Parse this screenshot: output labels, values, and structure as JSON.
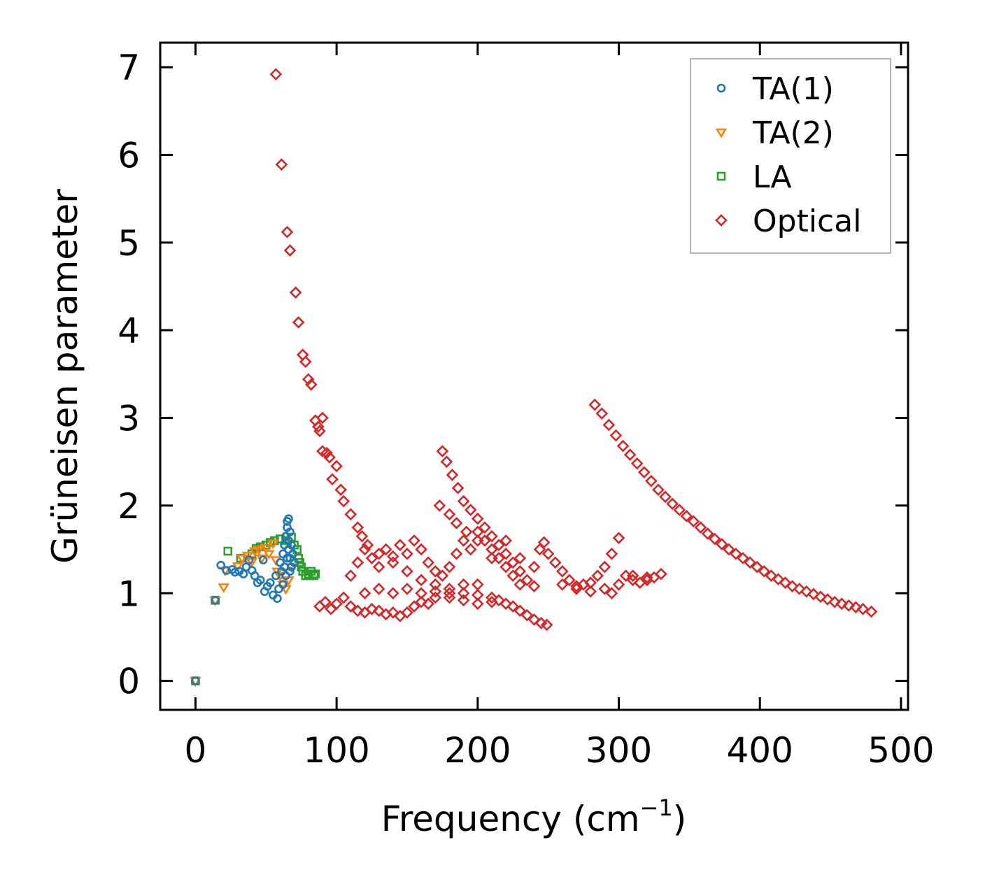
{
  "chart_data": {
    "type": "scatter",
    "title": "",
    "xlabel": "Frequency (cm",
    "xlabel_sup": "−1",
    "xlabel_close": ")",
    "ylabel": "Grüneisen parameter",
    "xlim": [
      -25,
      505
    ],
    "ylim": [
      -0.33,
      7.28
    ],
    "xticks": [
      0,
      100,
      200,
      300,
      400,
      500
    ],
    "yticks": [
      0,
      1,
      2,
      3,
      4,
      5,
      6,
      7
    ],
    "legend_position": "top-right",
    "grid": false,
    "series": [
      {
        "name": "TA(1)",
        "marker": "circle",
        "color": "#1f77b4",
        "points": [
          [
            0,
            0
          ],
          [
            14,
            0.92
          ],
          [
            18,
            1.32
          ],
          [
            22,
            1.26
          ],
          [
            26,
            1.27
          ],
          [
            28,
            1.24
          ],
          [
            31,
            1.25
          ],
          [
            34,
            1.22
          ],
          [
            36,
            1.3
          ],
          [
            38,
            1.38
          ],
          [
            40,
            1.26
          ],
          [
            42,
            1.2
          ],
          [
            44,
            1.12
          ],
          [
            46,
            1.15
          ],
          [
            48,
            1.38
          ],
          [
            49,
            1.02
          ],
          [
            51,
            1.08
          ],
          [
            53,
            1.12
          ],
          [
            55,
            0.98
          ],
          [
            57,
            1.2
          ],
          [
            58,
            0.94
          ],
          [
            59,
            1.05
          ],
          [
            60,
            1.35
          ],
          [
            61,
            1.25
          ],
          [
            62,
            1.45
          ],
          [
            63,
            1.55
          ],
          [
            64,
            1.65
          ],
          [
            65,
            1.75
          ],
          [
            65,
            1.82
          ],
          [
            66,
            1.6
          ],
          [
            66,
            1.5
          ],
          [
            67,
            1.7
          ],
          [
            67,
            1.4
          ],
          [
            68,
            1.55
          ],
          [
            68,
            1.3
          ],
          [
            69,
            1.45
          ],
          [
            70,
            1.35
          ],
          [
            63,
            1.3
          ],
          [
            62,
            1.1
          ],
          [
            64,
            1.2
          ],
          [
            66,
            1.85
          ],
          [
            65,
            1.4
          ],
          [
            67,
            1.25
          ]
        ]
      },
      {
        "name": "TA(2)",
        "marker": "triangle",
        "color": "#ff7f0e",
        "points": [
          [
            0,
            0
          ],
          [
            14,
            0.92
          ],
          [
            20,
            1.07
          ],
          [
            21,
            1.26
          ],
          [
            30,
            1.31
          ],
          [
            33,
            1.4
          ],
          [
            37,
            1.43
          ],
          [
            40,
            1.36
          ],
          [
            42,
            1.48
          ],
          [
            45,
            1.5
          ],
          [
            47,
            1.4
          ],
          [
            50,
            1.52
          ],
          [
            52,
            1.45
          ],
          [
            55,
            1.57
          ],
          [
            57,
            1.38
          ],
          [
            58,
            1.25
          ],
          [
            60,
            1.2
          ],
          [
            62,
            1.1
          ],
          [
            64,
            1.05
          ],
          [
            66,
            1.15
          ],
          [
            68,
            1.3
          ]
        ]
      },
      {
        "name": "LA",
        "marker": "square",
        "color": "#2ca02c",
        "points": [
          [
            0,
            0
          ],
          [
            14,
            0.92
          ],
          [
            23,
            1.48
          ],
          [
            32,
            1.4
          ],
          [
            40,
            1.45
          ],
          [
            43,
            1.51
          ],
          [
            46,
            1.53
          ],
          [
            50,
            1.55
          ],
          [
            53,
            1.58
          ],
          [
            56,
            1.6
          ],
          [
            60,
            1.62
          ],
          [
            64,
            1.6
          ],
          [
            68,
            1.64
          ],
          [
            70,
            1.55
          ],
          [
            72,
            1.5
          ],
          [
            73,
            1.4
          ],
          [
            74,
            1.35
          ],
          [
            75,
            1.3
          ],
          [
            76,
            1.25
          ],
          [
            78,
            1.2
          ],
          [
            80,
            1.22
          ],
          [
            82,
            1.25
          ],
          [
            84,
            1.2
          ],
          [
            85,
            1.22
          ]
        ]
      },
      {
        "name": "Optical",
        "marker": "diamond",
        "color": "#d62728",
        "points": [
          [
            57,
            6.92
          ],
          [
            61,
            5.89
          ],
          [
            65,
            5.12
          ],
          [
            67,
            4.91
          ],
          [
            71,
            4.43
          ],
          [
            73,
            4.09
          ],
          [
            76,
            3.72
          ],
          [
            78,
            3.64
          ],
          [
            80,
            3.44
          ],
          [
            82,
            3.38
          ],
          [
            85,
            2.97
          ],
          [
            87,
            2.9
          ],
          [
            88,
            2.85
          ],
          [
            90,
            3.0
          ],
          [
            90,
            2.62
          ],
          [
            93,
            2.6
          ],
          [
            95,
            2.55
          ],
          [
            97,
            2.3
          ],
          [
            100,
            2.45
          ],
          [
            103,
            2.18
          ],
          [
            105,
            2.05
          ],
          [
            110,
            1.9
          ],
          [
            115,
            1.75
          ],
          [
            118,
            1.65
          ],
          [
            122,
            1.55
          ],
          [
            130,
            1.45
          ],
          [
            140,
            1.35
          ],
          [
            150,
            1.25
          ],
          [
            160,
            1.15
          ],
          [
            170,
            1.1
          ],
          [
            180,
            1.05
          ],
          [
            190,
            1.0
          ],
          [
            200,
            0.98
          ],
          [
            175,
            2.62
          ],
          [
            178,
            2.5
          ],
          [
            182,
            2.35
          ],
          [
            186,
            2.2
          ],
          [
            190,
            2.05
          ],
          [
            195,
            1.95
          ],
          [
            200,
            1.85
          ],
          [
            205,
            1.75
          ],
          [
            210,
            1.65
          ],
          [
            215,
            1.55
          ],
          [
            220,
            1.45
          ],
          [
            225,
            1.35
          ],
          [
            230,
            1.25
          ],
          [
            235,
            1.15
          ],
          [
            240,
            1.08
          ],
          [
            244,
            1.5
          ],
          [
            247,
            1.58
          ],
          [
            250,
            1.45
          ],
          [
            255,
            1.35
          ],
          [
            260,
            1.25
          ],
          [
            265,
            1.15
          ],
          [
            270,
            1.08
          ],
          [
            275,
            1.1
          ],
          [
            280,
            1.12
          ],
          [
            285,
            1.2
          ],
          [
            290,
            1.3
          ],
          [
            295,
            1.45
          ],
          [
            300,
            1.63
          ],
          [
            305,
            1.2
          ],
          [
            310,
            1.15
          ],
          [
            315,
            1.12
          ],
          [
            320,
            1.15
          ],
          [
            325,
            1.18
          ],
          [
            330,
            1.22
          ],
          [
            283,
            3.15
          ],
          [
            288,
            3.05
          ],
          [
            293,
            2.92
          ],
          [
            298,
            2.8
          ],
          [
            303,
            2.68
          ],
          [
            308,
            2.58
          ],
          [
            313,
            2.48
          ],
          [
            318,
            2.38
          ],
          [
            323,
            2.28
          ],
          [
            328,
            2.18
          ],
          [
            333,
            2.1
          ],
          [
            338,
            2.02
          ],
          [
            343,
            1.95
          ],
          [
            348,
            1.88
          ],
          [
            353,
            1.82
          ],
          [
            358,
            1.75
          ],
          [
            363,
            1.68
          ],
          [
            368,
            1.62
          ],
          [
            373,
            1.56
          ],
          [
            378,
            1.5
          ],
          [
            383,
            1.45
          ],
          [
            388,
            1.4
          ],
          [
            393,
            1.35
          ],
          [
            398,
            1.3
          ],
          [
            403,
            1.25
          ],
          [
            408,
            1.2
          ],
          [
            413,
            1.16
          ],
          [
            418,
            1.12
          ],
          [
            423,
            1.08
          ],
          [
            428,
            1.05
          ],
          [
            433,
            1.02
          ],
          [
            438,
            0.99
          ],
          [
            443,
            0.96
          ],
          [
            448,
            0.93
          ],
          [
            453,
            0.9
          ],
          [
            458,
            0.88
          ],
          [
            463,
            0.86
          ],
          [
            468,
            0.84
          ],
          [
            473,
            0.82
          ],
          [
            479,
            0.79
          ],
          [
            88,
            0.85
          ],
          [
            92,
            0.9
          ],
          [
            96,
            0.82
          ],
          [
            100,
            0.88
          ],
          [
            105,
            0.95
          ],
          [
            110,
            0.85
          ],
          [
            115,
            0.8
          ],
          [
            120,
            0.78
          ],
          [
            125,
            0.82
          ],
          [
            130,
            0.8
          ],
          [
            135,
            0.76
          ],
          [
            140,
            0.78
          ],
          [
            145,
            0.74
          ],
          [
            150,
            0.78
          ],
          [
            155,
            0.85
          ],
          [
            160,
            0.9
          ],
          [
            165,
            0.88
          ],
          [
            170,
            0.95
          ],
          [
            200,
            1.1
          ],
          [
            210,
            0.95
          ],
          [
            215,
            0.92
          ],
          [
            220,
            0.88
          ],
          [
            225,
            0.85
          ],
          [
            230,
            0.8
          ],
          [
            235,
            0.75
          ],
          [
            240,
            0.7
          ],
          [
            245,
            0.66
          ],
          [
            249,
            0.64
          ],
          [
            110,
            1.2
          ],
          [
            115,
            1.35
          ],
          [
            120,
            1.5
          ],
          [
            125,
            1.4
          ],
          [
            130,
            1.3
          ],
          [
            135,
            1.5
          ],
          [
            140,
            1.42
          ],
          [
            145,
            1.55
          ],
          [
            150,
            1.45
          ],
          [
            155,
            1.6
          ],
          [
            160,
            1.5
          ],
          [
            165,
            1.35
          ],
          [
            170,
            1.25
          ],
          [
            175,
            1.2
          ],
          [
            180,
            1.3
          ],
          [
            185,
            1.45
          ],
          [
            190,
            1.6
          ],
          [
            195,
            1.5
          ],
          [
            200,
            1.7
          ],
          [
            205,
            1.6
          ],
          [
            210,
            1.5
          ],
          [
            215,
            1.4
          ],
          [
            220,
            1.3
          ],
          [
            225,
            1.2
          ],
          [
            230,
            1.1
          ],
          [
            120,
            1.0
          ],
          [
            130,
            1.05
          ],
          [
            140,
            1.0
          ],
          [
            150,
            1.05
          ],
          [
            160,
            1.0
          ],
          [
            170,
            1.02
          ],
          [
            180,
            0.95
          ],
          [
            190,
            0.92
          ],
          [
            200,
            0.88
          ],
          [
            210,
            0.9
          ],
          [
            173,
            2.0
          ],
          [
            180,
            1.9
          ],
          [
            185,
            1.8
          ],
          [
            192,
            1.7
          ],
          [
            200,
            1.6
          ],
          [
            210,
            1.4
          ],
          [
            220,
            1.6
          ],
          [
            230,
            1.4
          ],
          [
            240,
            1.3
          ],
          [
            180,
            1.0
          ],
          [
            190,
            1.1
          ],
          [
            260,
            1.1
          ],
          [
            270,
            1.05
          ],
          [
            280,
            1.02
          ],
          [
            290,
            1.05
          ],
          [
            295,
            1.0
          ],
          [
            300,
            1.1
          ],
          [
            310,
            1.2
          ],
          [
            320,
            1.18
          ]
        ]
      }
    ]
  }
}
